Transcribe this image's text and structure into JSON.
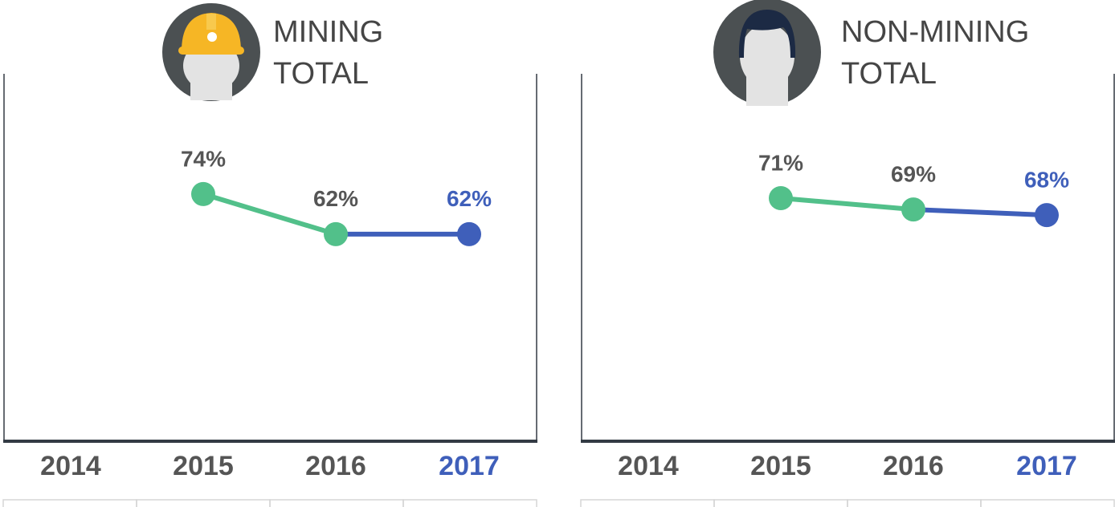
{
  "chart_data": [
    {
      "type": "line",
      "title": [
        "MINING",
        "TOTAL"
      ],
      "categories": [
        "2014",
        "2015",
        "2016",
        "2017"
      ],
      "values": [
        null,
        74,
        62,
        62
      ],
      "value_labels": [
        null,
        "74%",
        "62%",
        "62%"
      ],
      "point_colors": [
        null,
        "#52c08a",
        "#52c08a",
        "#3f5fba"
      ],
      "label_colors": [
        "#555555",
        "#555555",
        "#555555",
        "#3f5fba"
      ],
      "ylim": [
        0,
        110
      ]
    },
    {
      "type": "line",
      "title": [
        "NON-MINING",
        "TOTAL"
      ],
      "categories": [
        "2014",
        "2015",
        "2016",
        "2017"
      ],
      "values": [
        null,
        71,
        69,
        68
      ],
      "value_labels": [
        null,
        "71%",
        "69%",
        "68%"
      ],
      "point_colors": [
        null,
        "#52c08a",
        "#52c08a",
        "#3f5fba"
      ],
      "label_colors": [
        "#555555",
        "#555555",
        "#555555",
        "#3f5fba"
      ],
      "ylim": [
        28,
        93
      ]
    }
  ]
}
